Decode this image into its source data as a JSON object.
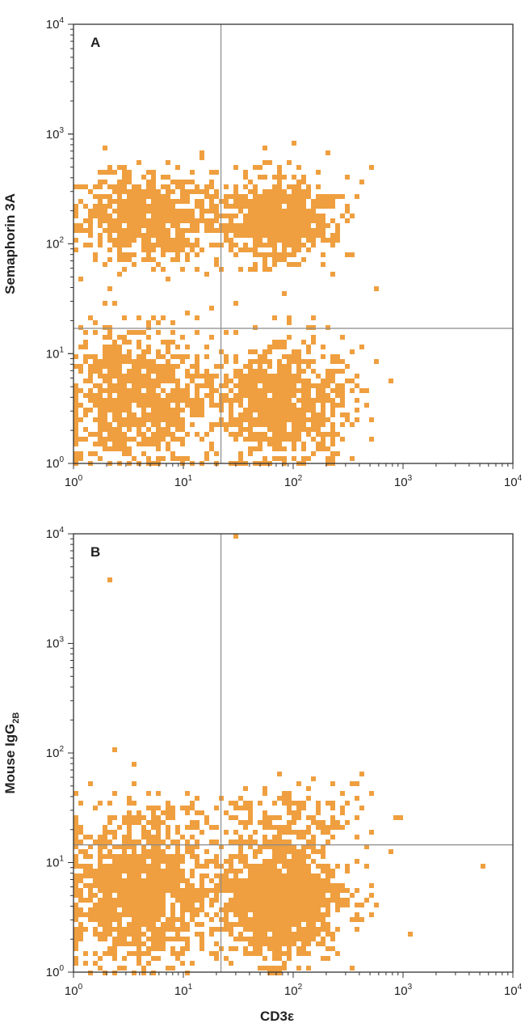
{
  "chart_data": [
    {
      "type": "scatter",
      "panel_label": "A",
      "xscale": "log",
      "yscale": "log",
      "xlim": [
        1,
        10000
      ],
      "ylim": [
        1,
        10000
      ],
      "xlabel": "",
      "ylabel": "Semaphorin 3A",
      "x_ticks": [
        1,
        10,
        100,
        1000,
        10000
      ],
      "y_ticks": [
        1,
        10,
        100,
        1000,
        10000
      ],
      "quadrant_gate": {
        "x": 22,
        "y": 17
      },
      "point_color": "#ef9f3f",
      "clusters": [
        {
          "center": [
            5,
            170
          ],
          "spread": [
            0.32,
            0.2
          ],
          "count": 750
        },
        {
          "center": [
            70,
            170
          ],
          "spread": [
            0.28,
            0.2
          ],
          "count": 620
        },
        {
          "center": [
            4,
            4
          ],
          "spread": [
            0.34,
            0.3
          ],
          "count": 850
        },
        {
          "center": [
            80,
            3.5
          ],
          "spread": [
            0.3,
            0.26
          ],
          "count": 800
        }
      ],
      "outliers": [
        [
          520,
          520
        ],
        [
          560,
          40
        ],
        [
          300,
          420
        ],
        [
          200,
          690
        ],
        [
          100,
          790
        ],
        [
          400,
          5
        ],
        [
          430,
          12
        ],
        [
          30,
          30
        ]
      ]
    },
    {
      "type": "scatter",
      "panel_label": "B",
      "xscale": "log",
      "yscale": "log",
      "xlim": [
        1,
        10000
      ],
      "ylim": [
        1,
        10000
      ],
      "xlabel": "CD3ε",
      "ylabel": "Mouse IgG",
      "ylabel_sub": "2B",
      "x_ticks": [
        1,
        10,
        100,
        1000,
        10000
      ],
      "y_ticks": [
        1,
        10,
        100,
        1000,
        10000
      ],
      "quadrant_gate": {
        "x": 22,
        "y": 14.5
      },
      "point_color": "#ef9f3f",
      "clusters": [
        {
          "center": [
            4,
            5
          ],
          "spread": [
            0.34,
            0.3
          ],
          "count": 1200
        },
        {
          "center": [
            80,
            4.5
          ],
          "spread": [
            0.26,
            0.25
          ],
          "count": 1300
        },
        {
          "center": [
            5,
            24
          ],
          "spread": [
            0.4,
            0.15
          ],
          "count": 110
        },
        {
          "center": [
            100,
            25
          ],
          "spread": [
            0.35,
            0.16
          ],
          "count": 130
        }
      ],
      "outliers": [
        [
          2.2,
          3900
        ],
        [
          2.4,
          110
        ],
        [
          30,
          9800
        ],
        [
          5200,
          9.5
        ],
        [
          1200,
          2.3
        ],
        [
          780,
          13
        ],
        [
          350,
          50
        ],
        [
          420,
          3
        ]
      ]
    }
  ]
}
